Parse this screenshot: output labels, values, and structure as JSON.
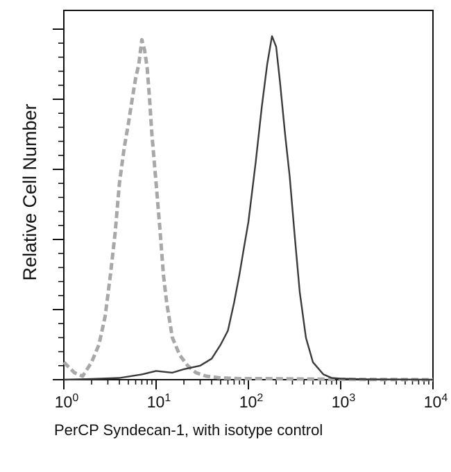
{
  "chart_data": {
    "type": "line",
    "xlabel": "PerCP Syndecan-1, with isotype control",
    "ylabel": "Relative Cell Number",
    "xscale": "log",
    "xlim": [
      1,
      10000
    ],
    "ylim": [
      0,
      100
    ],
    "x_tick_labels": [
      {
        "base": "10",
        "exp": "0",
        "value": 1
      },
      {
        "base": "10",
        "exp": "1",
        "value": 10
      },
      {
        "base": "10",
        "exp": "2",
        "value": 100
      },
      {
        "base": "10",
        "exp": "3",
        "value": 1000
      },
      {
        "base": "10",
        "exp": "4",
        "value": 10000
      }
    ],
    "y_major_ticks": [
      0,
      20,
      40,
      60,
      80,
      100
    ],
    "grid": false,
    "legend": "none",
    "series": [
      {
        "style": "dashed",
        "color": "#a8a8a8",
        "x": [
          1.0,
          1.3,
          1.6,
          2.0,
          2.4,
          2.8,
          3.2,
          3.6,
          4.0,
          4.5,
          5.0,
          5.5,
          6.0,
          6.5,
          7.0,
          7.5,
          8.0,
          8.5,
          9.0,
          10.0,
          11.0,
          12.0,
          13.0,
          15.0,
          18.0,
          22.0,
          27.0,
          35.0,
          50.0,
          80.0,
          150.0,
          400.0,
          1000.0,
          10000.0
        ],
        "y": [
          5,
          2,
          1,
          5,
          10,
          18,
          30,
          42,
          56,
          66,
          73,
          80,
          86,
          90,
          97,
          94,
          89,
          80,
          70,
          56,
          43,
          30,
          22,
          12,
          7,
          4,
          2,
          1,
          0.5,
          0.3,
          0.3,
          0.2,
          0.1,
          0
        ]
      },
      {
        "style": "solid",
        "color": "#3a3a3a",
        "x": [
          1.0,
          2.0,
          4.0,
          7.0,
          10.0,
          15.0,
          20.0,
          30.0,
          40.0,
          50.0,
          60.0,
          70.0,
          80.0,
          90.0,
          100.0,
          120.0,
          140.0,
          160.0,
          180.0,
          200.0,
          220.0,
          250.0,
          280.0,
          320.0,
          360.0,
          420.0,
          500.0,
          650.0,
          800.0,
          1000.0,
          2000.0,
          10000.0
        ],
        "y": [
          0,
          0.2,
          0.5,
          1.5,
          2.5,
          2,
          3,
          4,
          6,
          10,
          14,
          22,
          30,
          38,
          45,
          62,
          78,
          90,
          98,
          95,
          85,
          70,
          58,
          40,
          25,
          12,
          5,
          1.5,
          0.5,
          0.3,
          0.1,
          0
        ]
      }
    ]
  }
}
